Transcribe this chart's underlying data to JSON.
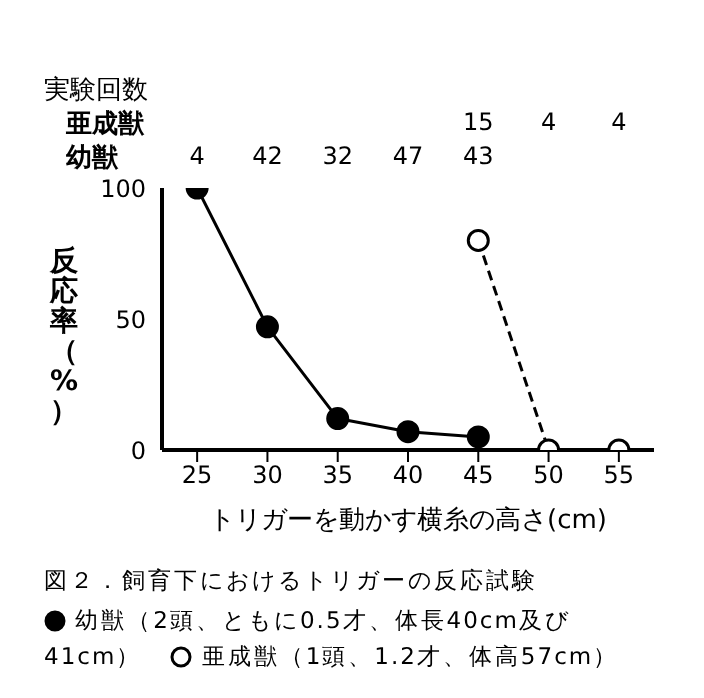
{
  "chart_data": {
    "type": "line",
    "title": "図２．飼育下におけるトリガーの反応試験",
    "xlabel": "トリガーを動かす横糸の高さ(cm)",
    "ylabel": "反応率（%）",
    "xlim": [
      22.5,
      57.5
    ],
    "xticks": [
      25,
      30,
      35,
      40,
      45,
      50,
      55
    ],
    "ylim": [
      0,
      100
    ],
    "yticks": [
      0,
      50,
      100
    ],
    "grid": false,
    "legend": "bottom",
    "marker": "circle",
    "series": [
      {
        "name": "幼獣（2頭、ともに0.5才、体長40cm及び41cm）",
        "color": "#000000",
        "line_style": "solid",
        "x": [
          25,
          30,
          35,
          40,
          45
        ],
        "values": [
          100,
          47,
          12,
          7,
          5
        ]
      },
      {
        "name": "亜成獣（1頭、1.2才、体高57cm）",
        "color": "#000000",
        "line_style": "dashed",
        "x": [
          45,
          50,
          55
        ],
        "values": [
          80,
          0,
          0
        ]
      }
    ],
    "annotations": [
      "実験回数",
      "亜成獣",
      "幼獣",
      "15",
      "4",
      "4",
      "4",
      "42",
      "32",
      "47",
      "43"
    ]
  }
}
